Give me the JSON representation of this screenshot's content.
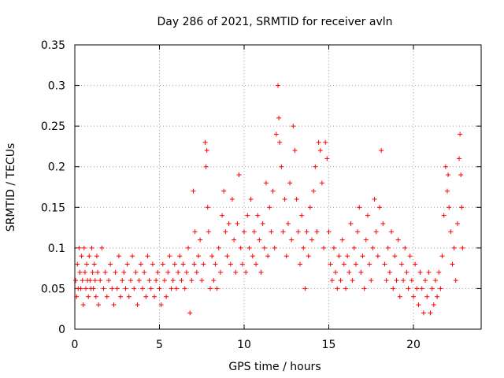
{
  "chart_data": {
    "type": "scatter",
    "title": "Day 286 of 2021, SRMTID for receiver avln",
    "xlabel": "GPS time / hours",
    "ylabel": "SRMTID / TECUs",
    "xlim": [
      0,
      24
    ],
    "ylim": [
      0,
      0.35
    ],
    "xticks": [
      0,
      5,
      10,
      15,
      20
    ],
    "xtick_labels": [
      "0",
      "5",
      "10",
      "15",
      "20"
    ],
    "yticks": [
      0,
      0.05,
      0.1,
      0.15,
      0.2,
      0.25,
      0.3,
      0.35
    ],
    "ytick_labels": [
      "0",
      "0.05",
      "0.1",
      "0.15",
      "0.2",
      "0.25",
      "0.3",
      "0.35"
    ],
    "grid": true,
    "marker": "+",
    "color": "#ff0000",
    "series": [
      {
        "name": "SRMTID",
        "points": [
          [
            0.05,
            0.06
          ],
          [
            0.1,
            0.04
          ],
          [
            0.15,
            0.08
          ],
          [
            0.2,
            0.05
          ],
          [
            0.25,
            0.1
          ],
          [
            0.3,
            0.07
          ],
          [
            0.35,
            0.05
          ],
          [
            0.4,
            0.09
          ],
          [
            0.45,
            0.06
          ],
          [
            0.5,
            0.03
          ],
          [
            0.55,
            0.1
          ],
          [
            0.6,
            0.07
          ],
          [
            0.65,
            0.05
          ],
          [
            0.7,
            0.08
          ],
          [
            0.75,
            0.06
          ],
          [
            0.8,
            0.04
          ],
          [
            0.85,
            0.09
          ],
          [
            0.9,
            0.06
          ],
          [
            0.95,
            0.05
          ],
          [
            1.0,
            0.1
          ],
          [
            1.05,
            0.07
          ],
          [
            1.1,
            0.05
          ],
          [
            1.15,
            0.08
          ],
          [
            1.2,
            0.06
          ],
          [
            1.25,
            0.04
          ],
          [
            1.3,
            0.09
          ],
          [
            1.35,
            0.07
          ],
          [
            1.4,
            0.03
          ],
          [
            1.5,
            0.06
          ],
          [
            1.6,
            0.1
          ],
          [
            1.7,
            0.05
          ],
          [
            1.8,
            0.07
          ],
          [
            1.9,
            0.04
          ],
          [
            2.0,
            0.06
          ],
          [
            2.1,
            0.08
          ],
          [
            2.2,
            0.05
          ],
          [
            2.3,
            0.03
          ],
          [
            2.4,
            0.07
          ],
          [
            2.5,
            0.05
          ],
          [
            2.6,
            0.09
          ],
          [
            2.7,
            0.04
          ],
          [
            2.8,
            0.06
          ],
          [
            2.9,
            0.07
          ],
          [
            3.0,
            0.05
          ],
          [
            3.1,
            0.08
          ],
          [
            3.2,
            0.04
          ],
          [
            3.3,
            0.06
          ],
          [
            3.4,
            0.09
          ],
          [
            3.5,
            0.05
          ],
          [
            3.6,
            0.07
          ],
          [
            3.7,
            0.03
          ],
          [
            3.8,
            0.06
          ],
          [
            3.9,
            0.08
          ],
          [
            4.0,
            0.05
          ],
          [
            4.1,
            0.07
          ],
          [
            4.2,
            0.04
          ],
          [
            4.3,
            0.09
          ],
          [
            4.4,
            0.06
          ],
          [
            4.5,
            0.05
          ],
          [
            4.6,
            0.08
          ],
          [
            4.7,
            0.04
          ],
          [
            4.8,
            0.06
          ],
          [
            4.9,
            0.07
          ],
          [
            5.0,
            0.05
          ],
          [
            5.1,
            0.03
          ],
          [
            5.2,
            0.08
          ],
          [
            5.3,
            0.06
          ],
          [
            5.4,
            0.04
          ],
          [
            5.5,
            0.07
          ],
          [
            5.6,
            0.09
          ],
          [
            5.7,
            0.05
          ],
          [
            5.8,
            0.06
          ],
          [
            5.9,
            0.08
          ],
          [
            6.0,
            0.05
          ],
          [
            6.1,
            0.07
          ],
          [
            6.2,
            0.09
          ],
          [
            6.3,
            0.06
          ],
          [
            6.4,
            0.08
          ],
          [
            6.5,
            0.05
          ],
          [
            6.6,
            0.07
          ],
          [
            6.7,
            0.1
          ],
          [
            6.8,
            0.02
          ],
          [
            6.9,
            0.06
          ],
          [
            7.0,
            0.17
          ],
          [
            7.05,
            0.08
          ],
          [
            7.1,
            0.12
          ],
          [
            7.2,
            0.07
          ],
          [
            7.3,
            0.09
          ],
          [
            7.4,
            0.11
          ],
          [
            7.5,
            0.06
          ],
          [
            7.6,
            0.08
          ],
          [
            7.7,
            0.23
          ],
          [
            7.75,
            0.2
          ],
          [
            7.8,
            0.22
          ],
          [
            7.85,
            0.15
          ],
          [
            7.9,
            0.12
          ],
          [
            8.0,
            0.05
          ],
          [
            8.1,
            0.09
          ],
          [
            8.2,
            0.06
          ],
          [
            8.3,
            0.08
          ],
          [
            8.4,
            0.05
          ],
          [
            8.5,
            0.1
          ],
          [
            8.6,
            0.07
          ],
          [
            8.7,
            0.14
          ],
          [
            8.8,
            0.17
          ],
          [
            8.9,
            0.12
          ],
          [
            9.0,
            0.09
          ],
          [
            9.1,
            0.13
          ],
          [
            9.2,
            0.08
          ],
          [
            9.3,
            0.16
          ],
          [
            9.4,
            0.11
          ],
          [
            9.5,
            0.07
          ],
          [
            9.6,
            0.13
          ],
          [
            9.7,
            0.19
          ],
          [
            9.8,
            0.1
          ],
          [
            9.9,
            0.08
          ],
          [
            10.0,
            0.12
          ],
          [
            10.1,
            0.07
          ],
          [
            10.2,
            0.14
          ],
          [
            10.3,
            0.1
          ],
          [
            10.4,
            0.16
          ],
          [
            10.5,
            0.09
          ],
          [
            10.6,
            0.12
          ],
          [
            10.7,
            0.08
          ],
          [
            10.8,
            0.14
          ],
          [
            10.9,
            0.11
          ],
          [
            11.0,
            0.07
          ],
          [
            11.1,
            0.13
          ],
          [
            11.2,
            0.1
          ],
          [
            11.3,
            0.18
          ],
          [
            11.4,
            0.09
          ],
          [
            11.5,
            0.15
          ],
          [
            11.6,
            0.12
          ],
          [
            11.7,
            0.17
          ],
          [
            11.8,
            0.1
          ],
          [
            11.9,
            0.24
          ],
          [
            12.0,
            0.3
          ],
          [
            12.05,
            0.26
          ],
          [
            12.1,
            0.23
          ],
          [
            12.2,
            0.2
          ],
          [
            12.3,
            0.12
          ],
          [
            12.4,
            0.16
          ],
          [
            12.5,
            0.09
          ],
          [
            12.6,
            0.13
          ],
          [
            12.7,
            0.18
          ],
          [
            12.8,
            0.11
          ],
          [
            12.9,
            0.25
          ],
          [
            13.0,
            0.22
          ],
          [
            13.1,
            0.16
          ],
          [
            13.2,
            0.12
          ],
          [
            13.3,
            0.08
          ],
          [
            13.4,
            0.14
          ],
          [
            13.5,
            0.1
          ],
          [
            13.6,
            0.05
          ],
          [
            13.7,
            0.12
          ],
          [
            13.8,
            0.09
          ],
          [
            13.9,
            0.15
          ],
          [
            14.0,
            0.11
          ],
          [
            14.1,
            0.17
          ],
          [
            14.2,
            0.2
          ],
          [
            14.3,
            0.12
          ],
          [
            14.4,
            0.23
          ],
          [
            14.5,
            0.22
          ],
          [
            14.6,
            0.18
          ],
          [
            14.7,
            0.1
          ],
          [
            14.8,
            0.23
          ],
          [
            14.9,
            0.21
          ],
          [
            15.0,
            0.12
          ],
          [
            15.1,
            0.08
          ],
          [
            15.2,
            0.06
          ],
          [
            15.3,
            0.1
          ],
          [
            15.4,
            0.07
          ],
          [
            15.5,
            0.05
          ],
          [
            15.6,
            0.09
          ],
          [
            15.7,
            0.06
          ],
          [
            15.8,
            0.11
          ],
          [
            15.9,
            0.08
          ],
          [
            16.0,
            0.05
          ],
          [
            16.1,
            0.09
          ],
          [
            16.2,
            0.07
          ],
          [
            16.3,
            0.13
          ],
          [
            16.4,
            0.06
          ],
          [
            16.5,
            0.1
          ],
          [
            16.6,
            0.08
          ],
          [
            16.7,
            0.12
          ],
          [
            16.8,
            0.15
          ],
          [
            16.9,
            0.07
          ],
          [
            17.0,
            0.09
          ],
          [
            17.1,
            0.05
          ],
          [
            17.2,
            0.11
          ],
          [
            17.3,
            0.14
          ],
          [
            17.4,
            0.08
          ],
          [
            17.5,
            0.06
          ],
          [
            17.6,
            0.1
          ],
          [
            17.7,
            0.16
          ],
          [
            17.8,
            0.12
          ],
          [
            17.9,
            0.09
          ],
          [
            18.0,
            0.15
          ],
          [
            18.1,
            0.22
          ],
          [
            18.2,
            0.13
          ],
          [
            18.3,
            0.08
          ],
          [
            18.4,
            0.06
          ],
          [
            18.5,
            0.1
          ],
          [
            18.6,
            0.07
          ],
          [
            18.7,
            0.12
          ],
          [
            18.8,
            0.05
          ],
          [
            18.9,
            0.09
          ],
          [
            19.0,
            0.06
          ],
          [
            19.1,
            0.11
          ],
          [
            19.2,
            0.04
          ],
          [
            19.3,
            0.08
          ],
          [
            19.4,
            0.06
          ],
          [
            19.5,
            0.1
          ],
          [
            19.6,
            0.07
          ],
          [
            19.7,
            0.05
          ],
          [
            19.8,
            0.09
          ],
          [
            19.9,
            0.06
          ],
          [
            20.0,
            0.04
          ],
          [
            20.1,
            0.08
          ],
          [
            20.2,
            0.05
          ],
          [
            20.3,
            0.03
          ],
          [
            20.4,
            0.07
          ],
          [
            20.5,
            0.05
          ],
          [
            20.6,
            0.02
          ],
          [
            20.7,
            0.06
          ],
          [
            20.8,
            0.04
          ],
          [
            20.9,
            0.07
          ],
          [
            21.0,
            0.02
          ],
          [
            21.1,
            0.05
          ],
          [
            21.2,
            0.03
          ],
          [
            21.3,
            0.06
          ],
          [
            21.4,
            0.04
          ],
          [
            21.5,
            0.07
          ],
          [
            21.6,
            0.05
          ],
          [
            21.7,
            0.09
          ],
          [
            21.8,
            0.14
          ],
          [
            21.9,
            0.2
          ],
          [
            22.0,
            0.17
          ],
          [
            22.05,
            0.19
          ],
          [
            22.1,
            0.15
          ],
          [
            22.2,
            0.12
          ],
          [
            22.3,
            0.08
          ],
          [
            22.4,
            0.1
          ],
          [
            22.5,
            0.06
          ],
          [
            22.6,
            0.13
          ],
          [
            22.7,
            0.21
          ],
          [
            22.75,
            0.24
          ],
          [
            22.8,
            0.19
          ],
          [
            22.85,
            0.15
          ],
          [
            22.9,
            0.1
          ]
        ]
      }
    ]
  }
}
